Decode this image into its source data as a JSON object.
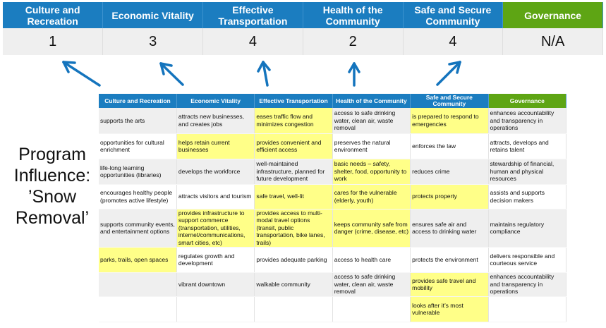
{
  "scores": {
    "headers": [
      "Culture and Recreation",
      "Economic Vitality",
      "Effective Transportation",
      "Health of the Community",
      "Safe and Secure Community",
      "Governance"
    ],
    "values": [
      "1",
      "3",
      "4",
      "2",
      "4",
      "N/A"
    ]
  },
  "program_label": "Program Influence: ’Snow Removal’",
  "colors": {
    "header_blue": "#1b7dc0",
    "governance_green": "#5ea514",
    "highlight": "#ffff88",
    "arrow": "#1474bd"
  },
  "matrix": {
    "headers": [
      "Culture and Recreation",
      "Economic Vitality",
      "Effective Transportation",
      "Health of the Community",
      "Safe and Secure Community",
      "Governance"
    ],
    "rows": [
      {
        "cells": [
          "supports the arts",
          "attracts new businesses, and creates jobs",
          "eases traffic flow and minimizes congestion",
          "access to safe drinking water, clean air, waste removal",
          "is prepared to respond to emergencies",
          "enhances accountability and transparency in operations"
        ],
        "highlighted": [
          2,
          4
        ]
      },
      {
        "cells": [
          "opportunities for cultural enrichment",
          "helps retain current businesses",
          "provides convenient and efficient access",
          "preserves the natural environment",
          "enforces the law",
          "attracts, develops and retains talent"
        ],
        "highlighted": [
          1,
          2
        ]
      },
      {
        "cells": [
          "life-long learning opportunities (libraries)",
          "develops the workforce",
          "well-maintained infrastructure, planned for future development",
          "basic needs – safety, shelter, food, opportunity to work",
          "reduces crime",
          "stewardship of financial, human and physical resources"
        ],
        "highlighted": [
          3
        ]
      },
      {
        "cells": [
          "encourages healthy people (promotes active lifestyle)",
          "attracts visitors and tourism",
          "safe travel, well-lit",
          "cares for the vulnerable (elderly, youth)",
          "protects property",
          "assists and supports decision makers"
        ],
        "highlighted": [
          2,
          3,
          4
        ]
      },
      {
        "cells": [
          "supports community events, and entertainment options",
          "provides infrastructure to support commerce (transportation, utilities, internet/communications, smart cities, etc)",
          "provides access to multi-modal travel options (transit, public transportation, bike lanes, trails)",
          "keeps community safe from danger (crime, disease, etc)",
          "ensures safe air and access to drinking water",
          "maintains regulatory compliance"
        ],
        "highlighted": [
          1,
          2,
          3
        ]
      },
      {
        "cells": [
          "parks, trails, open spaces",
          "regulates growth and development",
          "provides adequate parking",
          "access to health care",
          "protects the environment",
          "delivers responsible and courteous service"
        ],
        "highlighted": [
          0
        ]
      },
      {
        "cells": [
          "",
          "vibrant downtown",
          "walkable community",
          "access to safe drinking water, clean air, waste removal",
          "provides safe travel and mobility",
          "enhances accountability and transparency in operations"
        ],
        "highlighted": [
          4
        ]
      },
      {
        "cells": [
          "",
          "",
          "",
          "",
          "looks after it’s most vulnerable",
          ""
        ],
        "highlighted": [
          4
        ]
      }
    ]
  }
}
